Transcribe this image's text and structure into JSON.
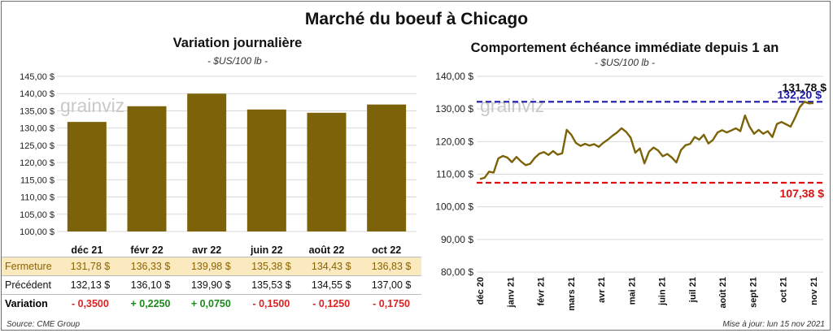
{
  "title": "Marché du boeuf à Chicago",
  "source": "Source: CME Group",
  "updated": "Mise à jour: lun 15 nov 2021",
  "watermark": "grainviz",
  "colors": {
    "bar": "#7c6208",
    "line": "#7c6208",
    "fermeture_bg": "#fbeac0",
    "ref_high": "#1c19a6",
    "ref_low": "#e01010",
    "neg": "#dd2222",
    "pos": "#1b8a1b"
  },
  "table": {
    "rows": [
      {
        "label": "Fermeture",
        "values": [
          "131,78 $",
          "136,33 $",
          "139,98 $",
          "135,38 $",
          "134,43 $",
          "136,83 $"
        ]
      },
      {
        "label": "Précédent",
        "values": [
          "132,13 $",
          "136,10 $",
          "139,90 $",
          "135,53 $",
          "134,55 $",
          "137,00 $"
        ]
      },
      {
        "label": "Variation",
        "values": [
          "- 0,3500",
          "+ 0,2250",
          "+ 0,0750",
          "- 0,1500",
          "- 0,1250",
          "- 0,1750"
        ]
      }
    ]
  },
  "chart_data": [
    {
      "type": "bar",
      "title": "Variation journalière",
      "subtitle": "- $US/100 lb -",
      "categories": [
        "déc 21",
        "févr 22",
        "avr 22",
        "juin 22",
        "août 22",
        "oct 22"
      ],
      "values": [
        131.78,
        136.33,
        139.98,
        135.38,
        134.43,
        136.83
      ],
      "ylim": [
        100,
        145
      ],
      "yticks": [
        100,
        105,
        110,
        115,
        120,
        125,
        130,
        135,
        140,
        145
      ],
      "ytick_labels": [
        "100,00 $",
        "105,00 $",
        "110,00 $",
        "115,00 $",
        "120,00 $",
        "125,00 $",
        "130,00 $",
        "135,00 $",
        "140,00 $",
        "145,00 $"
      ],
      "grid": true
    },
    {
      "type": "line",
      "title": "Comportement  échéance immédiate depuis 1 an",
      "subtitle": "- $US/100 lb -",
      "ylim": [
        80,
        140
      ],
      "yticks": [
        80,
        90,
        100,
        110,
        120,
        130,
        140
      ],
      "ytick_labels": [
        "80,00 $",
        "90,00 $",
        "100,00 $",
        "110,00 $",
        "120,00 $",
        "130,00 $",
        "140,00 $"
      ],
      "x_labels": [
        "déc 20",
        "janv 21",
        "févr 21",
        "mars 21",
        "avr 21",
        "mai 21",
        "juin 21",
        "juil 21",
        "août 21",
        "sept 21",
        "oct 21",
        "nov 21"
      ],
      "series": [
        {
          "values": [
            108.5,
            108.9,
            110.8,
            110.5,
            114.8,
            115.6,
            115.1,
            113.7,
            115.3,
            113.9,
            112.8,
            113.2,
            115.0,
            116.3,
            116.8,
            115.9,
            117.1,
            116.0,
            116.4,
            123.6,
            122.1,
            119.6,
            118.7,
            119.3,
            118.8,
            119.2,
            118.4,
            119.6,
            120.6,
            121.8,
            122.8,
            124.1,
            123.0,
            121.2,
            116.6,
            117.9,
            113.3,
            116.9,
            118.2,
            117.3,
            115.5,
            116.2,
            115.1,
            113.6,
            117.4,
            118.9,
            119.3,
            121.4,
            120.6,
            122.1,
            119.4,
            120.5,
            122.8,
            123.5,
            122.8,
            123.4,
            124.1,
            123.2,
            128.0,
            124.6,
            122.4,
            123.6,
            122.4,
            123.2,
            121.4,
            125.4,
            126.0,
            125.3,
            124.6,
            127.4,
            130.6,
            132.2,
            131.7,
            131.8
          ]
        }
      ],
      "reference_lines": [
        {
          "value": 132.2,
          "label": "132,20 $",
          "color": "#1c19a6"
        },
        {
          "value": 107.38,
          "label": "107,38 $",
          "color": "#e01010"
        }
      ],
      "last_value_label": "131,78 $",
      "grid": true
    }
  ]
}
